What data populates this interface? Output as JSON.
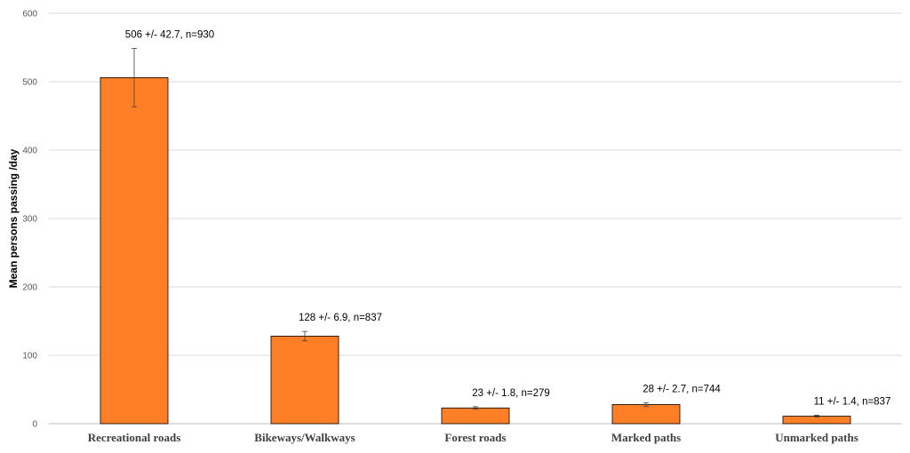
{
  "chart_data": {
    "type": "bar",
    "title": "",
    "xlabel": "",
    "ylabel": "Mean persons passing /day",
    "ylim": [
      0,
      600
    ],
    "yticks": [
      0,
      100,
      200,
      300,
      400,
      500,
      600
    ],
    "grid": true,
    "legend": "none",
    "categories": [
      "Recreational roads",
      "Bikeways/Walkways",
      "Forest roads",
      "Marked paths",
      "Unmarked paths"
    ],
    "values": [
      506,
      128,
      23,
      28,
      11
    ],
    "errors": [
      42.7,
      6.9,
      1.8,
      2.7,
      1.4
    ],
    "data_labels": [
      "506 +/- 42.7, n=930",
      "128 +/- 6.9, n=837",
      "23 +/- 1.8, n=279",
      "28 +/- 2.7, n=744",
      "11 +/- 1.4, n=837"
    ],
    "colors": {
      "bar_fill": "#FF7F27",
      "bar_stroke": "#000000",
      "gridline": "#D9D9D9",
      "error_bar": "#404040"
    }
  }
}
